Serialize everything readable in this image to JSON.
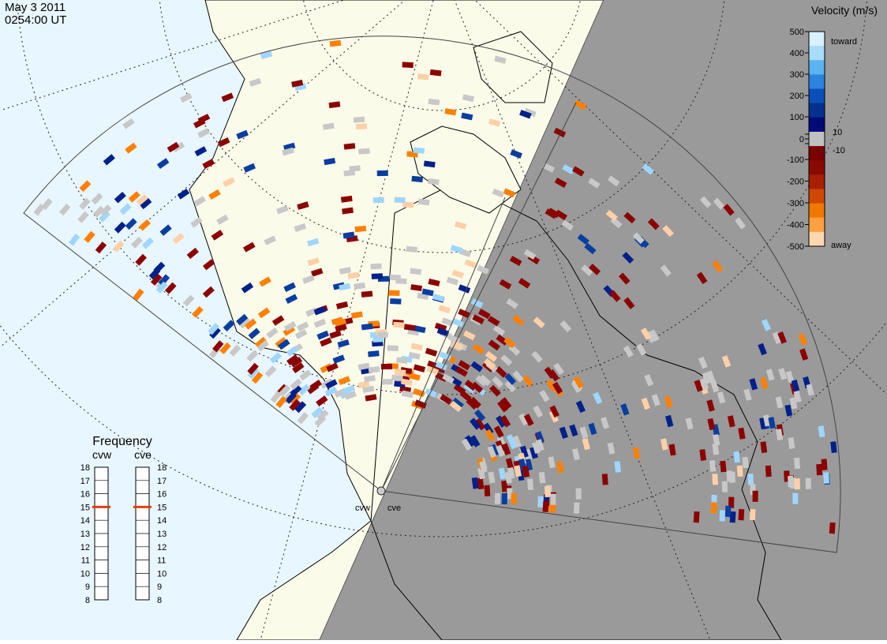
{
  "header": {
    "date": "May 3 2011",
    "time": "0254:00 UT"
  },
  "velocity_scale": {
    "title": "Velocity (m/s)",
    "ticks": [
      500,
      400,
      300,
      200,
      100,
      10,
      0,
      -10,
      -100,
      -200,
      -300,
      -400,
      -500
    ],
    "toward": "toward",
    "away": "away"
  },
  "frequency": {
    "title": "Frequency",
    "ticks": [
      8,
      9,
      10,
      11,
      12,
      13,
      14,
      15,
      16,
      17,
      18
    ],
    "radars": [
      {
        "name": "cvw",
        "value": 15
      },
      {
        "name": "cve",
        "value": 15
      }
    ]
  }
}
